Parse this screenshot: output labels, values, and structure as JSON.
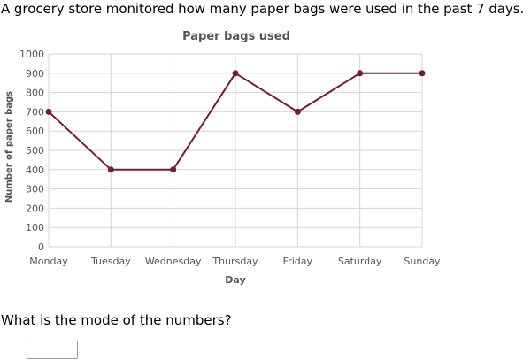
{
  "problem": {
    "intro": "A grocery store monitored how many paper bags were used in the past 7 days.",
    "question": "What is the mode of the numbers?",
    "answer_value": ""
  },
  "chart_data": {
    "type": "line",
    "title": "Paper bags used",
    "xlabel": "Day",
    "ylabel": "Number of paper bags",
    "categories": [
      "Monday",
      "Tuesday",
      "Wednesday",
      "Thursday",
      "Friday",
      "Saturday",
      "Sunday"
    ],
    "series": [
      {
        "values": [
          700,
          400,
          400,
          900,
          700,
          900,
          900
        ]
      }
    ],
    "ylim": [
      0,
      1000
    ],
    "yticks": [
      0,
      100,
      200,
      300,
      400,
      500,
      600,
      700,
      800,
      900,
      1000
    ],
    "grid": true,
    "line_color": "#7a1a35",
    "grid_color": "#d4d4d4",
    "label_color": "#555555"
  }
}
